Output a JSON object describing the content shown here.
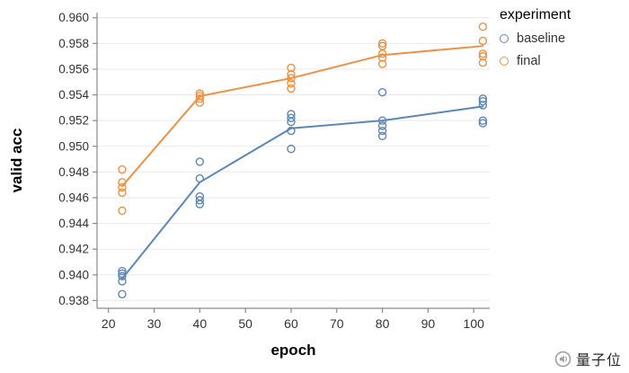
{
  "legend": {
    "title": "experiment",
    "items": [
      {
        "label": "baseline",
        "color": "#5d87b7"
      },
      {
        "label": "final",
        "color": "#f09040"
      }
    ]
  },
  "watermark": {
    "text": "量子位"
  },
  "chart_data": {
    "type": "line",
    "title": "",
    "xlabel": "epoch",
    "ylabel": "valid acc",
    "xlim": [
      17.5,
      103.5
    ],
    "ylim": [
      0.9374,
      0.9604
    ],
    "xticks": [
      "20",
      "30",
      "40",
      "50",
      "60",
      "70",
      "80",
      "90",
      "100"
    ],
    "yticks": [
      "0.938",
      "0.940",
      "0.942",
      "0.944",
      "0.946",
      "0.948",
      "0.950",
      "0.952",
      "0.954",
      "0.956",
      "0.958",
      "0.960"
    ],
    "grid": "horizontal",
    "legend_position": "right",
    "series": [
      {
        "name": "baseline",
        "color": "#5d87b7",
        "line": [
          [
            23,
            0.9397
          ],
          [
            40,
            0.9472
          ],
          [
            60,
            0.9514
          ],
          [
            80,
            0.952
          ],
          [
            102,
            0.9531
          ]
        ],
        "scatter": [
          [
            23,
            0.9385
          ],
          [
            23,
            0.9395
          ],
          [
            23,
            0.9399
          ],
          [
            23,
            0.9401
          ],
          [
            23,
            0.9403
          ],
          [
            40,
            0.9455
          ],
          [
            40,
            0.9458
          ],
          [
            40,
            0.9461
          ],
          [
            40,
            0.9475
          ],
          [
            40,
            0.9488
          ],
          [
            60,
            0.9498
          ],
          [
            60,
            0.9512
          ],
          [
            60,
            0.9519
          ],
          [
            60,
            0.9522
          ],
          [
            60,
            0.9525
          ],
          [
            80,
            0.9508
          ],
          [
            80,
            0.9512
          ],
          [
            80,
            0.9516
          ],
          [
            80,
            0.952
          ],
          [
            80,
            0.9542
          ],
          [
            102,
            0.9518
          ],
          [
            102,
            0.952
          ],
          [
            102,
            0.9532
          ],
          [
            102,
            0.9535
          ],
          [
            102,
            0.9537
          ]
        ]
      },
      {
        "name": "final",
        "color": "#f09040",
        "line": [
          [
            23,
            0.9469
          ],
          [
            40,
            0.9539
          ],
          [
            60,
            0.9553
          ],
          [
            80,
            0.9571
          ],
          [
            102,
            0.9578
          ]
        ],
        "scatter": [
          [
            23,
            0.945
          ],
          [
            23,
            0.9464
          ],
          [
            23,
            0.9468
          ],
          [
            23,
            0.9472
          ],
          [
            23,
            0.9482
          ],
          [
            40,
            0.9534
          ],
          [
            40,
            0.9537
          ],
          [
            40,
            0.9539
          ],
          [
            40,
            0.9541
          ],
          [
            60,
            0.9545
          ],
          [
            60,
            0.9549
          ],
          [
            60,
            0.9553
          ],
          [
            60,
            0.9556
          ],
          [
            60,
            0.9561
          ],
          [
            80,
            0.9564
          ],
          [
            80,
            0.9569
          ],
          [
            80,
            0.9572
          ],
          [
            80,
            0.9578
          ],
          [
            80,
            0.958
          ],
          [
            102,
            0.9565
          ],
          [
            102,
            0.957
          ],
          [
            102,
            0.9572
          ],
          [
            102,
            0.9582
          ],
          [
            102,
            0.9593
          ]
        ]
      }
    ]
  }
}
